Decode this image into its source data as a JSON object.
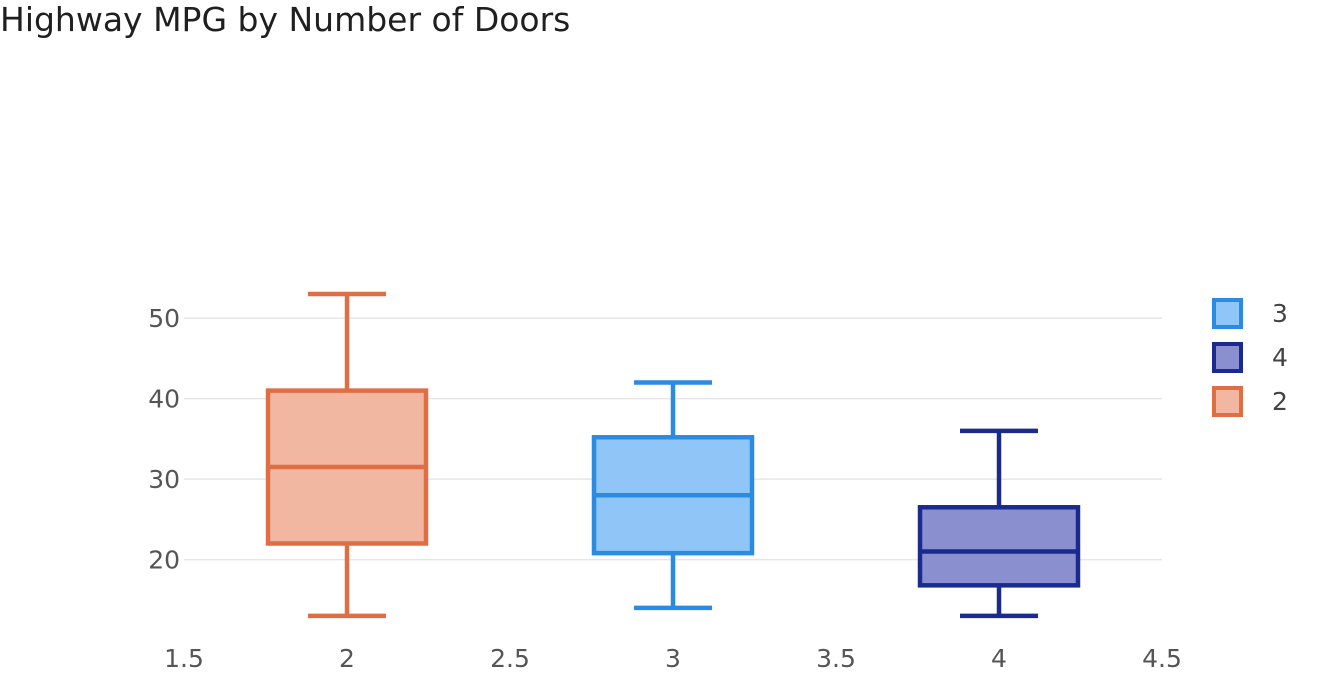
{
  "chart_data": {
    "type": "box",
    "title": "Highway MPG by Number of Doors",
    "xlabel": "",
    "ylabel": "",
    "xlim": [
      1.5,
      4.5
    ],
    "ylim": [
      11,
      54
    ],
    "xticks": [
      1.5,
      2,
      2.5,
      3,
      3.5,
      4,
      4.5
    ],
    "xtick_labels": [
      "1.5",
      "2",
      "2.5",
      "3",
      "3.5",
      "4",
      "4.5"
    ],
    "yticks": [
      20,
      30,
      40,
      50
    ],
    "ytick_labels": [
      "20",
      "30",
      "40",
      "50"
    ],
    "grid": "horizontal",
    "legend_position": "right",
    "series": [
      {
        "name": "3",
        "x": 3,
        "min": 14,
        "q1": 20.8,
        "median": 28,
        "q3": 35.2,
        "max": 42,
        "stroke": "#2b8be3",
        "fill": "#90c5f7"
      },
      {
        "name": "4",
        "x": 4,
        "min": 13,
        "q1": 16.8,
        "median": 21,
        "q3": 26.5,
        "max": 36,
        "stroke": "#1a2a8e",
        "fill": "#8a90cf"
      },
      {
        "name": "2",
        "x": 2,
        "min": 13,
        "q1": 22,
        "median": 31.5,
        "q3": 41,
        "max": 53,
        "stroke": "#e06e44",
        "fill": "#f2b7a1"
      }
    ]
  }
}
